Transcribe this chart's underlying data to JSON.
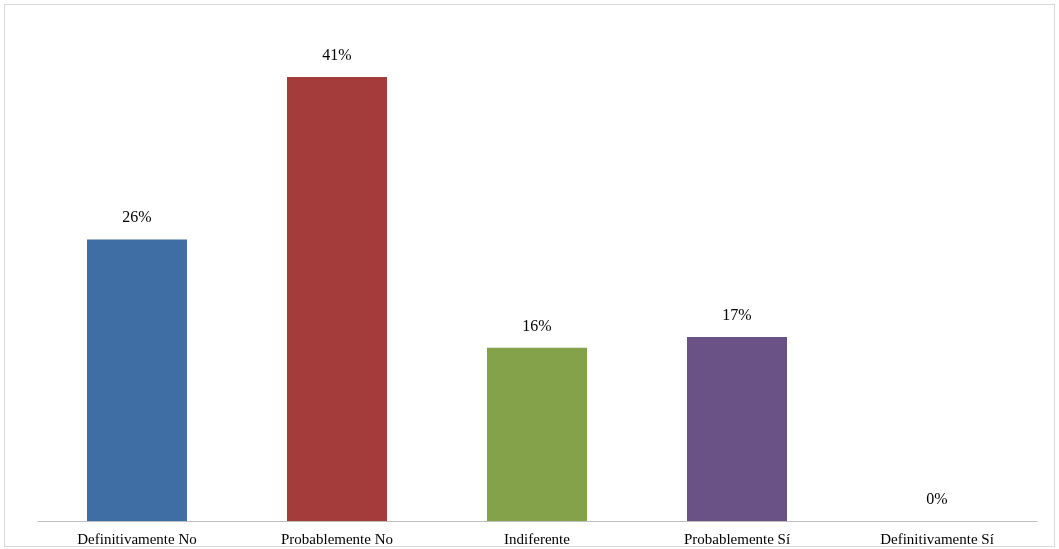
{
  "chart_data": {
    "type": "bar",
    "categories": [
      "Definitivamente No",
      "Probablemente No",
      "Indiferente",
      "Probablemente Sí",
      "Definitivamente Sí"
    ],
    "values": [
      26,
      41,
      16,
      17,
      0
    ],
    "colors": [
      "#3f6ea4",
      "#a33c3a",
      "#84a24a",
      "#6a5286",
      "#4bacc6"
    ],
    "value_labels": [
      "26%",
      "41%",
      "16%",
      "17%",
      "0%"
    ]
  }
}
